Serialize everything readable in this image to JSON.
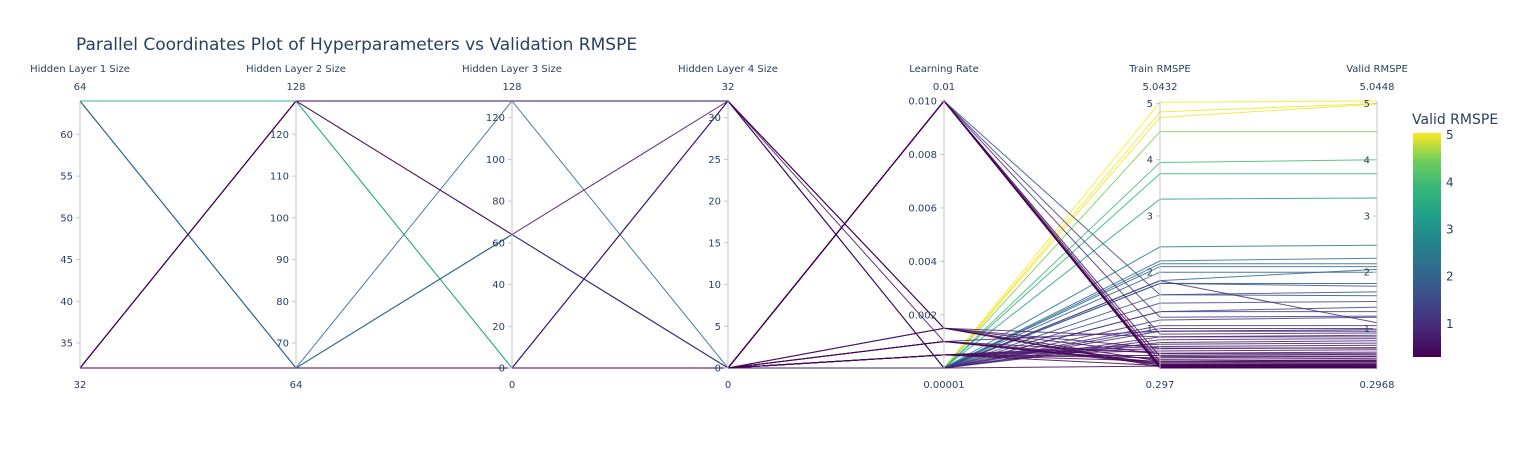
{
  "chart_data": {
    "type": "parallel_coordinates",
    "title": "Parallel Coordinates Plot of Hyperparameters vs Validation RMSPE",
    "dimensions": [
      {
        "label": "Hidden Layer 1 Size",
        "range": [
          32,
          64
        ],
        "min_label": "32",
        "max_label": "64",
        "ticks": [
          35,
          40,
          45,
          50,
          55,
          60
        ]
      },
      {
        "label": "Hidden Layer 2 Size",
        "range": [
          64,
          128
        ],
        "min_label": "64",
        "max_label": "128",
        "ticks": [
          70,
          80,
          90,
          100,
          110,
          120
        ]
      },
      {
        "label": "Hidden Layer 3 Size",
        "range": [
          0,
          128
        ],
        "min_label": "0",
        "max_label": "128",
        "ticks": [
          0,
          20,
          40,
          60,
          80,
          100,
          120
        ]
      },
      {
        "label": "Hidden Layer 4 Size",
        "range": [
          0,
          32
        ],
        "min_label": "0",
        "max_label": "32",
        "ticks": [
          0,
          5,
          10,
          15,
          20,
          25,
          30
        ]
      },
      {
        "label": "Learning Rate",
        "range": [
          1e-05,
          0.01
        ],
        "min_label": "0.00001",
        "max_label": "0.01",
        "ticks": [
          0.002,
          0.004,
          0.006,
          0.008,
          0.01
        ]
      },
      {
        "label": "Train RMSPE",
        "range": [
          0.297,
          5.0432
        ],
        "min_label": "0.297",
        "max_label": "5.0432",
        "ticks": [
          1,
          2,
          3,
          4,
          5
        ]
      },
      {
        "label": "Valid RMSPE",
        "range": [
          0.2968,
          5.0448
        ],
        "min_label": "0.2968",
        "max_label": "5.0448",
        "ticks": [
          1,
          2,
          3,
          4,
          5
        ]
      }
    ],
    "colorbar": {
      "title": "Valid RMSPE",
      "colorscale": "Viridis",
      "range": [
        0.2968,
        5.0448
      ],
      "ticks": [
        1,
        2,
        3,
        4,
        5
      ]
    },
    "lines": [
      [
        32,
        64,
        0,
        0,
        1e-05,
        5.02,
        5.0448
      ],
      [
        32,
        64,
        0,
        0,
        1e-05,
        4.85,
        5.0
      ],
      [
        32,
        64,
        0,
        0,
        1e-05,
        4.75,
        4.99
      ],
      [
        32,
        64,
        0,
        0,
        1e-05,
        4.5,
        4.5
      ],
      [
        32,
        64,
        0,
        0,
        1e-05,
        3.75,
        3.75
      ],
      [
        64,
        128,
        0,
        0,
        1e-05,
        3.3,
        3.32
      ],
      [
        32,
        64,
        64,
        0,
        1e-05,
        2.45,
        2.48
      ],
      [
        32,
        64,
        0,
        0,
        1e-05,
        2.2,
        2.25
      ],
      [
        32,
        64,
        0,
        0,
        1e-05,
        2.15,
        2.15
      ],
      [
        64,
        64,
        128,
        0,
        1e-05,
        1.85,
        2.05
      ],
      [
        32,
        64,
        0,
        0,
        1e-05,
        1.8,
        1.8
      ],
      [
        32,
        64,
        0,
        0,
        1e-05,
        1.6,
        1.65
      ],
      [
        32,
        64,
        0,
        0,
        1e-05,
        1.45,
        1.48
      ],
      [
        32,
        64,
        0,
        0,
        1e-05,
        1.3,
        1.38
      ],
      [
        32,
        64,
        0,
        0,
        1e-05,
        1.15,
        1.2
      ],
      [
        32,
        64,
        0,
        0,
        1e-05,
        1.05,
        1.05
      ],
      [
        32,
        64,
        0,
        0,
        1e-05,
        0.95,
        0.98
      ],
      [
        32,
        64,
        0,
        0,
        1e-05,
        1.85,
        1.1
      ],
      [
        32,
        64,
        0,
        0,
        1e-05,
        0.85,
        0.88
      ],
      [
        32,
        128,
        64,
        0,
        1e-05,
        0.8,
        0.82
      ],
      [
        32,
        64,
        0,
        0,
        1e-05,
        0.75,
        0.78
      ],
      [
        32,
        64,
        0,
        0,
        0.0005,
        0.72,
        0.74
      ],
      [
        32,
        64,
        0,
        0,
        0.0005,
        0.68,
        0.7
      ],
      [
        32,
        64,
        0,
        0,
        0.0005,
        0.64,
        0.66
      ],
      [
        32,
        64,
        0,
        0,
        0.0005,
        0.6,
        0.62
      ],
      [
        32,
        64,
        0,
        32,
        0.001,
        0.56,
        0.58
      ],
      [
        32,
        64,
        0,
        0,
        0.0005,
        0.52,
        0.54
      ],
      [
        32,
        64,
        0,
        0,
        0.0005,
        0.48,
        0.5
      ],
      [
        32,
        64,
        0,
        0,
        0.001,
        0.45,
        0.47
      ],
      [
        32,
        64,
        0,
        0,
        0.0005,
        0.42,
        0.44
      ],
      [
        32,
        64,
        0,
        0,
        0.001,
        0.4,
        0.41
      ],
      [
        32,
        64,
        0,
        0,
        0.001,
        0.38,
        0.39
      ],
      [
        32,
        64,
        0,
        0,
        0.001,
        0.36,
        0.37
      ],
      [
        32,
        64,
        0,
        0,
        0.0005,
        0.34,
        0.35
      ],
      [
        32,
        128,
        128,
        32,
        1e-05,
        0.33,
        0.33
      ],
      [
        32,
        64,
        0,
        0,
        0.01,
        0.32,
        0.32
      ],
      [
        32,
        64,
        0,
        0,
        0.01,
        0.315,
        0.315
      ],
      [
        32,
        64,
        0,
        0,
        0.01,
        0.31,
        0.31
      ],
      [
        32,
        64,
        0,
        0,
        0.01,
        0.305,
        0.305
      ],
      [
        32,
        64,
        0,
        0,
        0.01,
        0.3,
        0.3
      ],
      [
        32,
        64,
        0,
        0,
        0.01,
        0.298,
        0.298
      ],
      [
        32,
        64,
        0,
        0,
        0.01,
        0.297,
        0.2968
      ],
      [
        32,
        64,
        0,
        0,
        0.01,
        0.3,
        0.305
      ],
      [
        32,
        64,
        0,
        0,
        0.01,
        0.31,
        0.32
      ],
      [
        32,
        64,
        0,
        0,
        0.01,
        0.33,
        0.34
      ],
      [
        32,
        64,
        0,
        0,
        0.01,
        0.36,
        0.37
      ],
      [
        32,
        64,
        0,
        0,
        0.01,
        0.42,
        0.43
      ],
      [
        32,
        64,
        0,
        0,
        0.01,
        0.5,
        0.51
      ],
      [
        32,
        64,
        0,
        0,
        0.01,
        0.9,
        0.92
      ],
      [
        32,
        64,
        0,
        0,
        0.01,
        1.2,
        1.22
      ],
      [
        32,
        64,
        0,
        0,
        0.01,
        1.6,
        1.58
      ],
      [
        32,
        128,
        64,
        32,
        0.0015,
        0.42,
        0.42
      ],
      [
        32,
        128,
        128,
        32,
        0.0015,
        0.35,
        0.35
      ],
      [
        32,
        128,
        128,
        32,
        0.0015,
        0.32,
        0.32
      ],
      [
        64,
        64,
        64,
        0,
        1e-05,
        2.1,
        2.1
      ],
      [
        64,
        64,
        64,
        0,
        1e-05,
        2.0,
        2.0
      ],
      [
        32,
        128,
        0,
        0,
        1e-05,
        3.95,
        4.0
      ],
      [
        32,
        64,
        0,
        32,
        1e-05,
        1.3,
        1.3
      ],
      [
        32,
        64,
        0,
        32,
        1e-05,
        1.8,
        1.75
      ],
      [
        32,
        64,
        0,
        32,
        1e-05,
        1.0,
        1.0
      ],
      [
        32,
        64,
        0,
        0,
        0.0015,
        0.65,
        0.65
      ],
      [
        32,
        64,
        0,
        0,
        0.0015,
        0.55,
        0.55
      ],
      [
        32,
        64,
        0,
        0,
        0.001,
        0.95,
        0.95
      ],
      [
        32,
        64,
        0,
        0,
        0.0015,
        0.85,
        0.85
      ]
    ]
  }
}
